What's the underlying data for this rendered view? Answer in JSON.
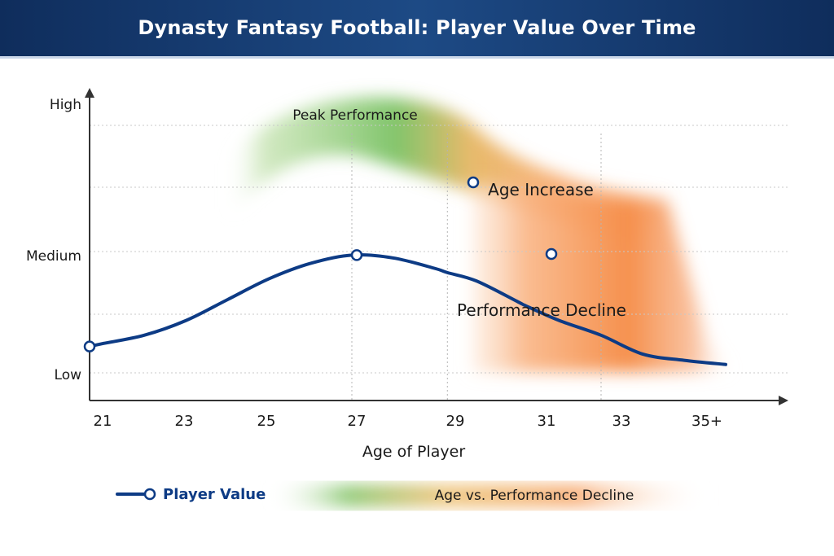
{
  "header": {
    "title": "Dynasty Fantasy Football: Player Value Over Time"
  },
  "chart_data": {
    "type": "line",
    "title": "Dynasty Fantasy Football: Player Value Over Time",
    "xlabel": "Age of Player",
    "ylabel": "",
    "x_ticks": [
      "21",
      "23",
      "25",
      "27",
      "29",
      "31",
      "33",
      "35+"
    ],
    "y_ticks": [
      "Low",
      "Medium",
      "High"
    ],
    "series": [
      {
        "name": "Player Value",
        "color": "#0d3b85",
        "x": [
          21,
          22,
          23,
          24,
          25,
          26,
          27,
          28,
          29,
          29.3,
          30,
          31,
          31.2,
          32,
          33,
          34,
          35,
          36
        ],
        "y": [
          0.7,
          0.9,
          1.25,
          1.75,
          2.25,
          2.62,
          2.82,
          2.75,
          2.5,
          2.4,
          2.2,
          1.7,
          1.6,
          1.25,
          0.9,
          0.45,
          0.3,
          0.2
        ],
        "markers_at_x": [
          20.7,
          27,
          29.3,
          31.2
        ]
      }
    ],
    "shaded_region": {
      "name": "Age vs. Performance Decline",
      "colors": [
        "#5fb34a",
        "#f39a4a",
        "#f27a2e"
      ]
    },
    "annotations": [
      {
        "text": "Peak Performance",
        "at_x": 27
      },
      {
        "text": "Age Increase",
        "at_x": 32
      },
      {
        "text": "Performance Decline",
        "at_x": 31
      }
    ],
    "grid": true,
    "legend": {
      "position": "bottom",
      "items": [
        {
          "label": "Player Value",
          "kind": "line"
        },
        {
          "label": "Age vs. Performance Decline",
          "kind": "gradient"
        }
      ]
    }
  }
}
